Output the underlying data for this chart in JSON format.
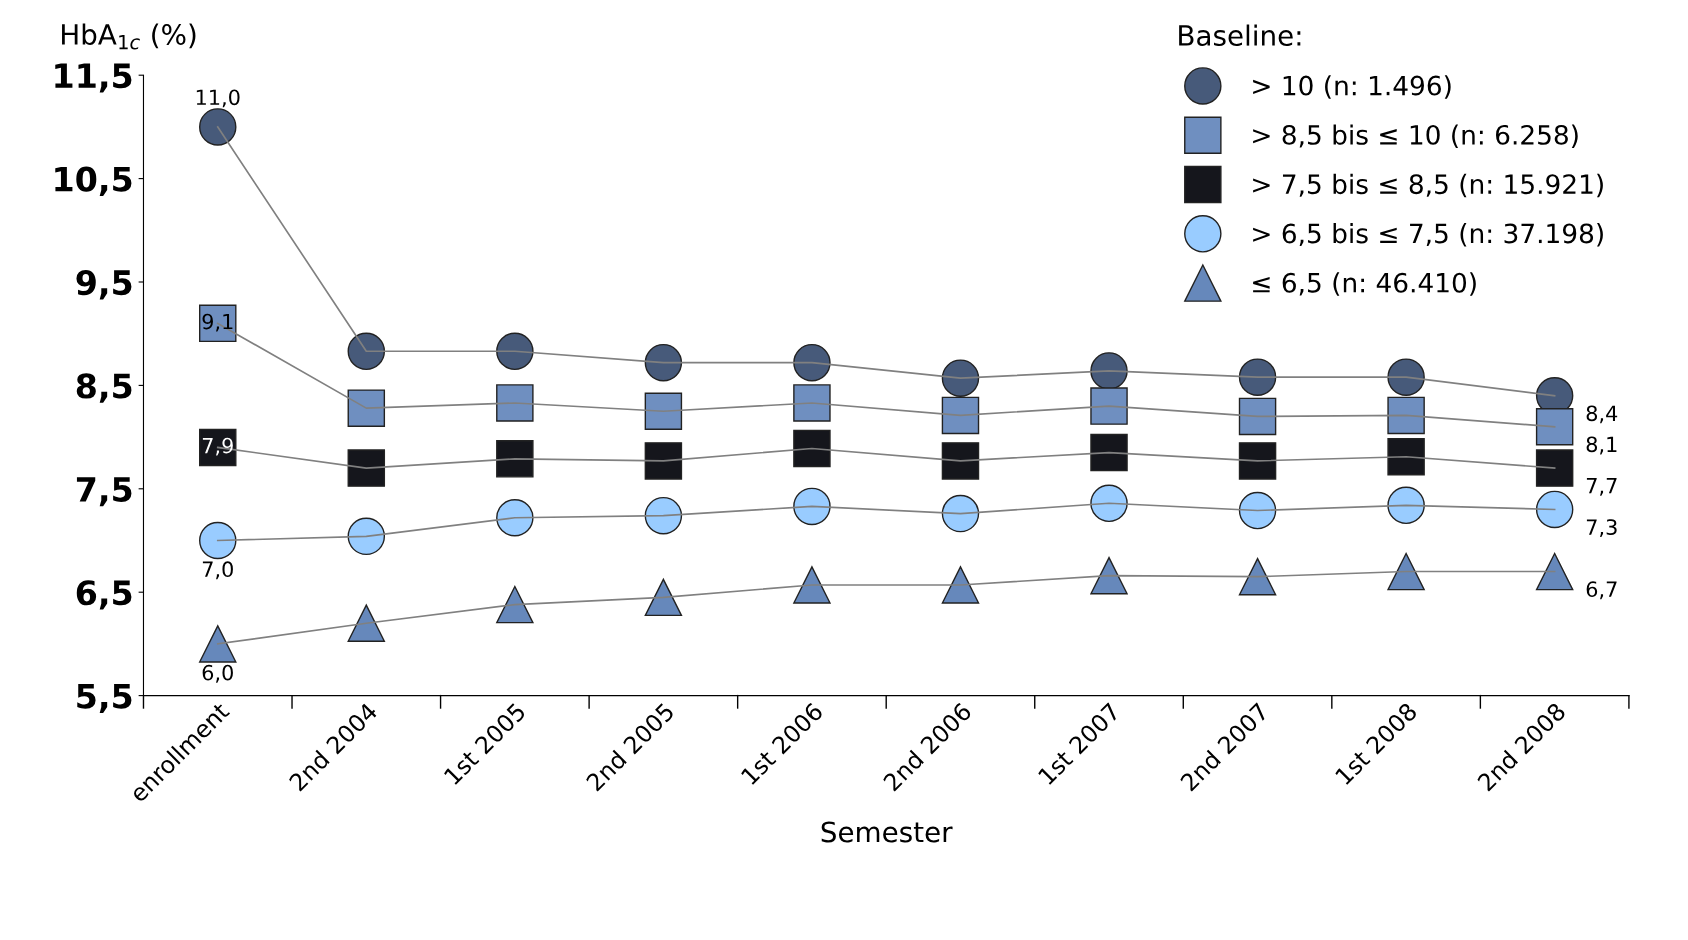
{
  "chart_data": {
    "type": "line",
    "xlabel": "Semester",
    "ylabel": "HbA$_{1c}$ (%)",
    "legend_title": "Baseline:",
    "legend": "top right",
    "grid": false,
    "line_style": "solid",
    "categories": [
      "enrollment",
      "2nd 2004",
      "1st 2005",
      "2nd 2005",
      "1st 2006",
      "2nd 2006",
      "1st 2007",
      "2nd 2007",
      "1st 2008",
      "2nd 2008"
    ],
    "ylim": [
      5.5,
      11.5
    ],
    "yticks": [
      {
        "value": 5.5,
        "label": "5,5"
      },
      {
        "value": 6.5,
        "label": "6,5"
      },
      {
        "value": 7.5,
        "label": "7,5"
      },
      {
        "value": 8.5,
        "label": "8,5"
      },
      {
        "value": 9.5,
        "label": "9,5"
      },
      {
        "value": 10.5,
        "label": "10,5"
      },
      {
        "value": 11.5,
        "label": "11,5"
      }
    ],
    "series": [
      {
        "name": "> 10 (n: 1.496)",
        "color": "#475a7a",
        "marker": "circle",
        "values": [
          11.0,
          8.83,
          8.83,
          8.72,
          8.72,
          8.57,
          8.64,
          8.58,
          8.58,
          8.4
        ],
        "value_labels": [
          "11,0",
          null,
          null,
          null,
          null,
          null,
          null,
          null,
          null,
          "8,4"
        ]
      },
      {
        "name": "> 8,5 bis ≤ 10 (n: 6.258)",
        "color": "#6f8fc0",
        "marker": "square",
        "values": [
          9.1,
          8.28,
          8.33,
          8.25,
          8.33,
          8.21,
          8.3,
          8.2,
          8.21,
          8.1
        ],
        "value_labels": [
          "9,1",
          null,
          null,
          null,
          null,
          null,
          null,
          null,
          null,
          "8,1"
        ]
      },
      {
        "name": "> 7,5 bis ≤ 8,5 (n: 15.921)",
        "color": "#15161c",
        "marker": "square",
        "values": [
          7.9,
          7.7,
          7.79,
          7.77,
          7.89,
          7.77,
          7.85,
          7.77,
          7.81,
          7.7
        ],
        "value_labels": [
          "7,9",
          null,
          null,
          null,
          null,
          null,
          null,
          null,
          null,
          "7,7"
        ]
      },
      {
        "name": "> 6,5 bis ≤ 7,5 (n: 37.198)",
        "color": "#99ccff",
        "marker": "circle",
        "values": [
          7.0,
          7.04,
          7.22,
          7.24,
          7.33,
          7.26,
          7.36,
          7.29,
          7.34,
          7.3
        ],
        "value_labels": [
          "7,0",
          null,
          null,
          null,
          null,
          null,
          null,
          null,
          null,
          "7,3"
        ]
      },
      {
        "name": "≤ 6,5 (n: 46.410)",
        "color": "#6688bb",
        "marker": "triangle",
        "values": [
          6.0,
          6.2,
          6.38,
          6.45,
          6.57,
          6.57,
          6.66,
          6.65,
          6.7,
          6.7
        ],
        "value_labels": [
          "6,0",
          null,
          null,
          null,
          null,
          null,
          null,
          null,
          null,
          "6,7"
        ]
      }
    ]
  }
}
